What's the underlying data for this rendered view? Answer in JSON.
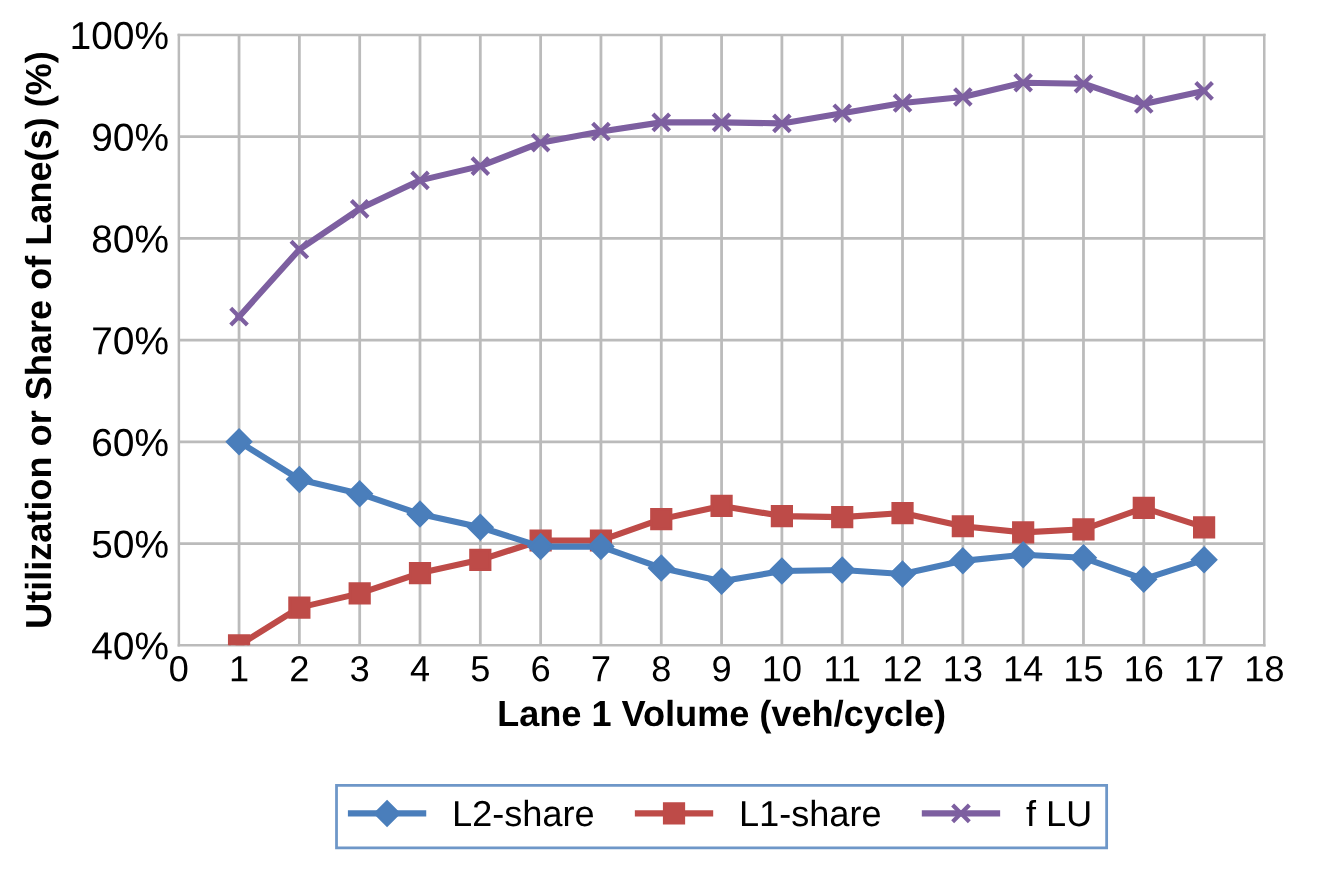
{
  "chart_data": {
    "type": "line",
    "xlabel": "Lane 1 Volume (veh/cycle)",
    "ylabel": "Utilization or Share of Lane(s) (%)",
    "x": [
      1,
      2,
      3,
      4,
      5,
      6,
      7,
      8,
      9,
      10,
      11,
      12,
      13,
      14,
      15,
      16,
      17
    ],
    "series": [
      {
        "name": "L2-share",
        "color": "#4a7ebb",
        "marker": "diamond",
        "values": [
          60,
          56.3,
          54.9,
          52.9,
          51.6,
          49.7,
          49.7,
          47.6,
          46.3,
          47.3,
          47.4,
          47.0,
          48.3,
          48.9,
          48.6,
          46.5,
          48.4
        ]
      },
      {
        "name": "L1-share",
        "color": "#be4b48",
        "marker": "square",
        "values": [
          40,
          43.7,
          45.1,
          47.1,
          48.4,
          50.3,
          50.3,
          52.4,
          53.7,
          52.7,
          52.6,
          53.0,
          51.7,
          51.1,
          51.4,
          53.5,
          51.6
        ]
      },
      {
        "name": "f LU",
        "color": "#7d5fa0",
        "marker": "cross",
        "values": [
          72.3,
          78.9,
          82.9,
          85.7,
          87.1,
          89.4,
          90.5,
          91.4,
          91.4,
          91.3,
          92.3,
          93.3,
          93.9,
          95.3,
          95.2,
          93.2,
          94.5
        ]
      }
    ],
    "xlim": [
      0,
      18
    ],
    "xticks": [
      0,
      1,
      2,
      3,
      4,
      5,
      6,
      7,
      8,
      9,
      10,
      11,
      12,
      13,
      14,
      15,
      16,
      17,
      18
    ],
    "ylim": [
      40,
      100
    ],
    "yticks": [
      {
        "value": 40,
        "label": "40%"
      },
      {
        "value": 50,
        "label": "50%"
      },
      {
        "value": 60,
        "label": "60%"
      },
      {
        "value": 70,
        "label": "70%"
      },
      {
        "value": 80,
        "label": "80%"
      },
      {
        "value": 90,
        "label": "90%"
      },
      {
        "value": 100,
        "label": "100%"
      }
    ],
    "grid": true,
    "legend": "bottom"
  }
}
